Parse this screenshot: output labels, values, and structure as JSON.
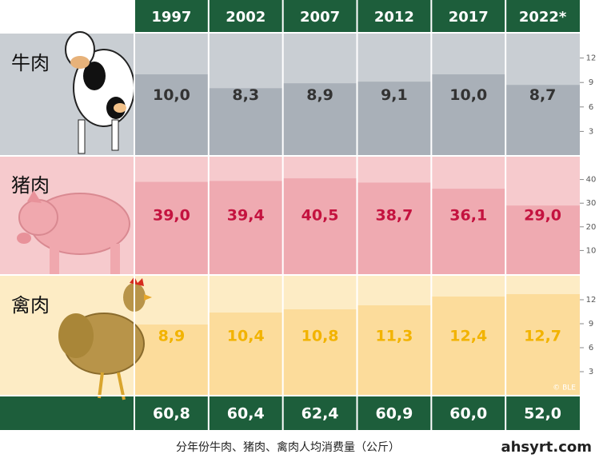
{
  "chart_data": {
    "type": "bar",
    "categories": [
      "1997",
      "2002",
      "2007",
      "2012",
      "2017",
      "2022*"
    ],
    "series": [
      {
        "name": "牛肉",
        "color": "#a9b0b8",
        "background": "#c9ced3",
        "label_color": "#333333",
        "values": [
          10.0,
          8.3,
          8.9,
          9.1,
          10.0,
          8.7
        ],
        "value_labels": [
          "10,0",
          "8,3",
          "8,9",
          "9,1",
          "10,0",
          "8,7"
        ],
        "ylim": [
          0,
          15
        ],
        "yticks": [
          3,
          6,
          9,
          12
        ]
      },
      {
        "name": "猪肉",
        "color": "#efaab1",
        "background": "#f6cacd",
        "label_color": "#c4123f",
        "values": [
          39.0,
          39.4,
          40.5,
          38.7,
          36.1,
          29.0
        ],
        "value_labels": [
          "39,0",
          "39,4",
          "40,5",
          "38,7",
          "36,1",
          "29,0"
        ],
        "ylim": [
          0,
          50
        ],
        "yticks": [
          10,
          20,
          30,
          40
        ]
      },
      {
        "name": "禽肉",
        "color": "#fcdc9b",
        "background": "#fdecc5",
        "label_color": "#f2b300",
        "values": [
          8.9,
          10.4,
          10.8,
          11.3,
          12.4,
          12.7
        ],
        "value_labels": [
          "8,9",
          "10,4",
          "10,8",
          "11,3",
          "12,4",
          "12,7"
        ],
        "ylim": [
          0,
          15
        ],
        "yticks": [
          3,
          6,
          9,
          12
        ]
      }
    ],
    "totals": {
      "values": [
        60.8,
        60.4,
        62.4,
        60.9,
        60.0,
        52.0
      ],
      "value_labels": [
        "60,8",
        "60,4",
        "62,4",
        "60,9",
        "60,0",
        "52,0"
      ]
    },
    "credit": "© BLE",
    "caption": "分年份牛肉、猪肉、禽肉人均消费量（公斤）",
    "watermark": "ahsyrt.com"
  }
}
